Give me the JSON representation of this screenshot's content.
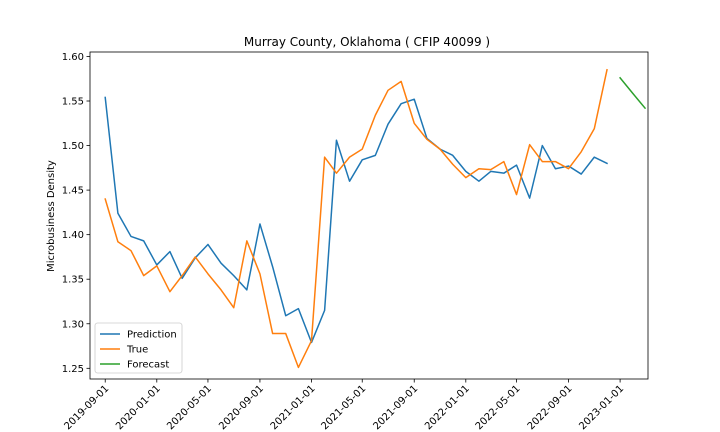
{
  "chart_data": {
    "type": "line",
    "title": "Murray County, Oklahoma ( CFIP 40099 )",
    "xlabel": "",
    "ylabel": "Microbusiness Density",
    "ylim": [
      1.238,
      1.605
    ],
    "xlim": [
      "2019-07-27",
      "2023-03-08"
    ],
    "yticks": [
      "1.25",
      "1.30",
      "1.35",
      "1.40",
      "1.45",
      "1.50",
      "1.55",
      "1.60"
    ],
    "xticks": [
      "2019-09-01",
      "2020-01-01",
      "2020-05-01",
      "2020-09-01",
      "2021-01-01",
      "2021-05-01",
      "2021-09-01",
      "2022-01-01",
      "2022-05-01",
      "2022-09-01",
      "2023-01-01"
    ],
    "grid": false,
    "legend_position": "lower-left",
    "series": [
      {
        "name": "Prediction",
        "color": "#1f77b4",
        "x": [
          "2019-09-01",
          "2019-10-01",
          "2019-11-01",
          "2019-12-01",
          "2020-01-01",
          "2020-02-01",
          "2020-03-01",
          "2020-04-01",
          "2020-05-01",
          "2020-06-01",
          "2020-07-01",
          "2020-08-01",
          "2020-09-01",
          "2020-10-01",
          "2020-11-01",
          "2020-12-01",
          "2021-01-01",
          "2021-02-01",
          "2021-03-01",
          "2021-04-01",
          "2021-05-01",
          "2021-06-01",
          "2021-07-01",
          "2021-08-01",
          "2021-09-01",
          "2021-10-01",
          "2021-11-01",
          "2021-12-01",
          "2022-01-01",
          "2022-02-01",
          "2022-03-01",
          "2022-04-01",
          "2022-05-01",
          "2022-06-01",
          "2022-07-01",
          "2022-08-01",
          "2022-09-01",
          "2022-10-01",
          "2022-11-01",
          "2022-12-01"
        ],
        "values": [
          1.554,
          1.424,
          1.398,
          1.393,
          1.366,
          1.381,
          1.351,
          1.374,
          1.389,
          1.368,
          1.354,
          1.338,
          1.412,
          1.364,
          1.309,
          1.317,
          1.279,
          1.315,
          1.506,
          1.46,
          1.484,
          1.489,
          1.524,
          1.547,
          1.552,
          1.508,
          1.496,
          1.489,
          1.471,
          1.46,
          1.471,
          1.469,
          1.478,
          1.441,
          1.5,
          1.474,
          1.477,
          1.468,
          1.487,
          1.48
        ]
      },
      {
        "name": "True",
        "color": "#ff7f0e",
        "x": [
          "2019-09-01",
          "2019-10-01",
          "2019-11-01",
          "2019-12-01",
          "2020-01-01",
          "2020-02-01",
          "2020-03-01",
          "2020-04-01",
          "2020-05-01",
          "2020-06-01",
          "2020-07-01",
          "2020-08-01",
          "2020-09-01",
          "2020-10-01",
          "2020-11-01",
          "2020-12-01",
          "2021-01-01",
          "2021-02-01",
          "2021-03-01",
          "2021-04-01",
          "2021-05-01",
          "2021-06-01",
          "2021-07-01",
          "2021-08-01",
          "2021-09-01",
          "2021-10-01",
          "2021-11-01",
          "2021-12-01",
          "2022-01-01",
          "2022-02-01",
          "2022-03-01",
          "2022-04-01",
          "2022-05-01",
          "2022-06-01",
          "2022-07-01",
          "2022-08-01",
          "2022-09-01",
          "2022-10-01",
          "2022-11-01",
          "2022-12-01"
        ],
        "values": [
          1.44,
          1.392,
          1.382,
          1.354,
          1.365,
          1.336,
          1.354,
          1.375,
          1.356,
          1.338,
          1.318,
          1.393,
          1.356,
          1.289,
          1.289,
          1.251,
          1.281,
          1.487,
          1.469,
          1.487,
          1.496,
          1.534,
          1.562,
          1.572,
          1.525,
          1.507,
          1.496,
          1.479,
          1.464,
          1.474,
          1.473,
          1.482,
          1.445,
          1.501,
          1.482,
          1.482,
          1.474,
          1.493,
          1.519,
          1.585
        ]
      },
      {
        "name": "Forecast",
        "color": "#2ca02c",
        "x": [
          "2023-01-01",
          "2023-02-01",
          "2023-03-01"
        ],
        "values": [
          1.576,
          1.558,
          1.542
        ]
      }
    ]
  }
}
